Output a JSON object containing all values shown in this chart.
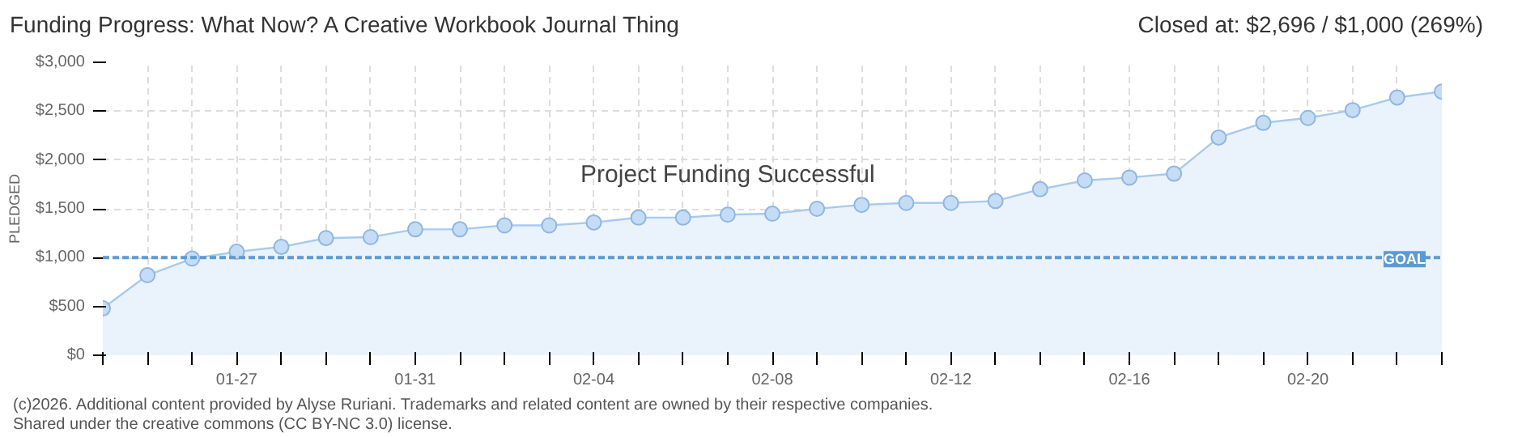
{
  "chart_data": {
    "type": "area",
    "title": "Funding Progress: What Now? A Creative Workbook Journal Thing",
    "subtitle": "Closed at: $2,696 / $1,000 (269%)",
    "ylabel": "PLEDGED",
    "x": [
      "2026-01-24",
      "2026-01-25",
      "2026-01-26",
      "2026-01-27",
      "2026-01-28",
      "2026-01-29",
      "2026-01-30",
      "2026-01-31",
      "2026-02-01",
      "2026-02-02",
      "2026-02-03",
      "2026-02-04",
      "2026-02-05",
      "2026-02-06",
      "2026-02-07",
      "2026-02-08",
      "2026-02-09",
      "2026-02-10",
      "2026-02-11",
      "2026-02-12",
      "2026-02-13",
      "2026-02-14",
      "2026-02-15",
      "2026-02-16",
      "2026-02-17",
      "2026-02-18",
      "2026-02-19",
      "2026-02-20",
      "2026-02-21",
      "2026-02-22",
      "2026-02-23"
    ],
    "series": [
      {
        "color": "#a9c9ee",
        "values": [
          480,
          820,
          990,
          1060,
          1110,
          1200,
          1210,
          1290,
          1290,
          1330,
          1330,
          1360,
          1410,
          1410,
          1440,
          1450,
          1500,
          1540,
          1560,
          1560,
          1580,
          1700,
          1790,
          1820,
          1860,
          2230,
          2380,
          2430,
          2510,
          2640,
          2700
        ]
      }
    ],
    "marker": "circle",
    "grid": true,
    "xlim": [
      "2026-01-24",
      "2026-02-23"
    ],
    "xticks": [
      {
        "value": "2026-01-24",
        "label": null
      },
      {
        "value": "2026-01-25",
        "label": null
      },
      {
        "value": "2026-01-26",
        "label": null
      },
      {
        "value": "2026-01-27",
        "label": "01-27"
      },
      {
        "value": "2026-01-28",
        "label": null
      },
      {
        "value": "2026-01-29",
        "label": null
      },
      {
        "value": "2026-01-30",
        "label": null
      },
      {
        "value": "2026-01-31",
        "label": "01-31"
      },
      {
        "value": "2026-02-01",
        "label": null
      },
      {
        "value": "2026-02-02",
        "label": null
      },
      {
        "value": "2026-02-03",
        "label": null
      },
      {
        "value": "2026-02-04",
        "label": "02-04"
      },
      {
        "value": "2026-02-05",
        "label": null
      },
      {
        "value": "2026-02-06",
        "label": null
      },
      {
        "value": "2026-02-07",
        "label": null
      },
      {
        "value": "2026-02-08",
        "label": "02-08"
      },
      {
        "value": "2026-02-09",
        "label": null
      },
      {
        "value": "2026-02-10",
        "label": null
      },
      {
        "value": "2026-02-11",
        "label": null
      },
      {
        "value": "2026-02-12",
        "label": "02-12"
      },
      {
        "value": "2026-02-13",
        "label": null
      },
      {
        "value": "2026-02-14",
        "label": null
      },
      {
        "value": "2026-02-15",
        "label": null
      },
      {
        "value": "2026-02-16",
        "label": "02-16"
      },
      {
        "value": "2026-02-17",
        "label": null
      },
      {
        "value": "2026-02-18",
        "label": null
      },
      {
        "value": "2026-02-19",
        "label": null
      },
      {
        "value": "2026-02-20",
        "label": "02-20"
      },
      {
        "value": "2026-02-21",
        "label": null
      },
      {
        "value": "2026-02-22",
        "label": null
      },
      {
        "value": "2026-02-23",
        "label": null
      }
    ],
    "ylim": [
      0,
      3000
    ],
    "yticks": [
      {
        "value": 0,
        "label": "$0"
      },
      {
        "value": 500,
        "label": "$500"
      },
      {
        "value": 1000,
        "label": "$1,000"
      },
      {
        "value": 1500,
        "label": "$1,500"
      },
      {
        "value": 2000,
        "label": "$2,000"
      },
      {
        "value": 2500,
        "label": "$2,500"
      },
      {
        "value": 3000,
        "label": "$3,000"
      }
    ],
    "ref_lines": [
      {
        "axis": "y",
        "value": 1000,
        "label": "GOAL",
        "color": "#5b9bd5",
        "line_style": "dashed"
      }
    ],
    "annotations": [
      "Project Funding Successful",
      "(c)2026. Additional content provided by Alyse Ruriani. Trademarks and related content are owned by their respective companies.",
      "Shared under the creative commons (CC BY-NC 3.0) license."
    ]
  }
}
